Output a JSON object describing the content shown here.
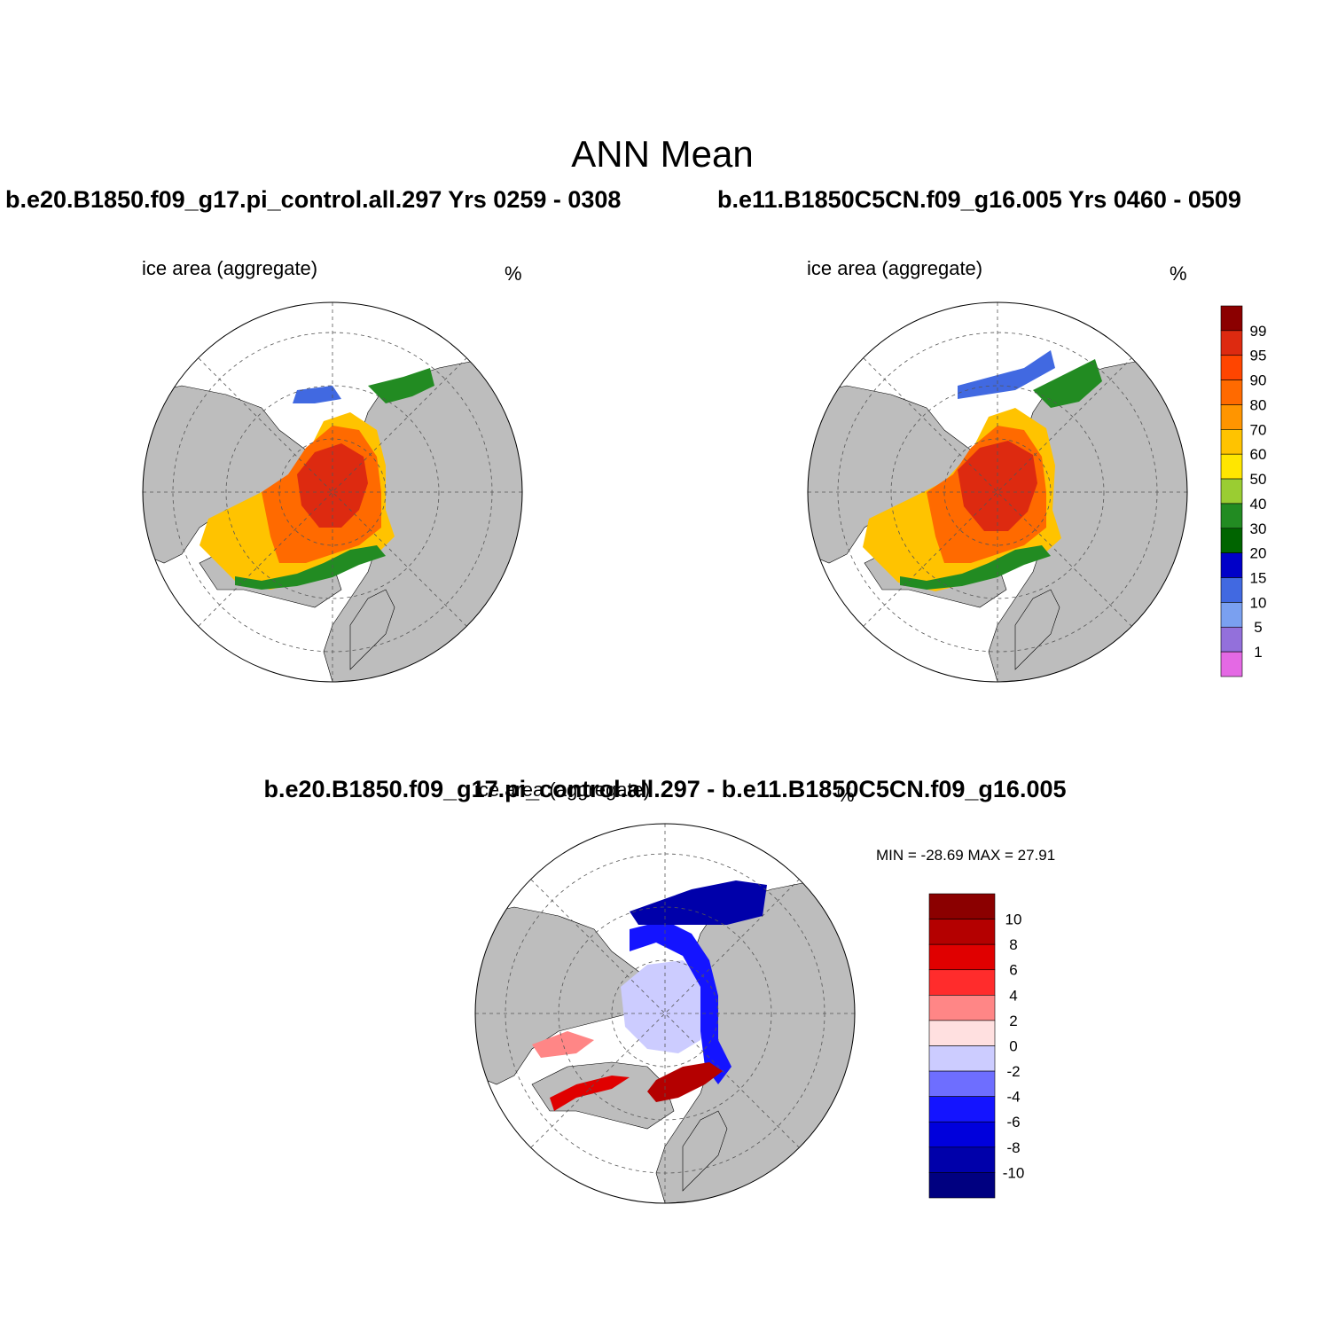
{
  "figure": {
    "title": "ANN Mean",
    "panels": [
      {
        "id": "case1",
        "case_title": "b.e20.B1850.f09_g17.pi_control.all.297  Yrs 0259 - 0308",
        "variable": "ice area  (aggregate)",
        "units": "%"
      },
      {
        "id": "case2",
        "case_title": "b.e11.B1850C5CN.f09_g16.005  Yrs 0460 - 0509",
        "variable": "ice area  (aggregate)",
        "units": "%"
      },
      {
        "id": "diff",
        "case_title": "b.e20.B1850.f09_g17.pi_control.all.297 - b.e11.B1850C5CN.f09_g16.005",
        "variable": "ice area  (aggregate)",
        "units": "%",
        "stats": "MIN = -28.69 MAX =  27.91"
      }
    ],
    "colors": {
      "land": "#bdbdbd",
      "ocean": "#ffffff",
      "grid": "#555555"
    },
    "colorbars": {
      "ice": {
        "labels": [
          "99",
          "95",
          "90",
          "80",
          "70",
          "60",
          "50",
          "40",
          "30",
          "20",
          "15",
          "10",
          "5",
          "1"
        ],
        "colors": [
          "#8b0000",
          "#dd2a10",
          "#ff4500",
          "#ff6a00",
          "#ff9500",
          "#ffc300",
          "#ffe600",
          "#9acd32",
          "#228b22",
          "#006400",
          "#0000c8",
          "#4169e1",
          "#7aa0f0",
          "#9370db",
          "#e469e4"
        ]
      },
      "diff": {
        "labels": [
          "10",
          "8",
          "6",
          "4",
          "2",
          "0",
          "-2",
          "-4",
          "-6",
          "-8",
          "-10"
        ],
        "colors": [
          "#8b0000",
          "#b40000",
          "#e00000",
          "#ff2c2c",
          "#ff8686",
          "#ffe0e0",
          "#ccccff",
          "#6e6eff",
          "#1414ff",
          "#0000dc",
          "#0000aa",
          "#000080"
        ]
      }
    }
  }
}
